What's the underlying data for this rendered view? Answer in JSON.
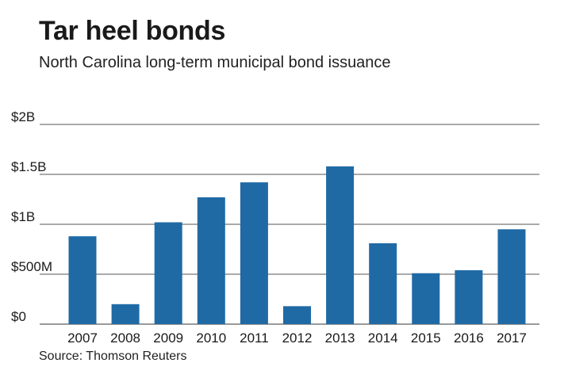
{
  "header": {
    "title": "Tar heel bonds",
    "subtitle": "North Carolina long-term municipal bond issuance"
  },
  "footer": {
    "source": "Source: Thomson Reuters"
  },
  "colors": {
    "bar": "#1f6aa5",
    "gridline": "#555555",
    "axis": "#333333"
  },
  "chart_data": {
    "type": "bar",
    "title": "Tar heel bonds",
    "subtitle": "North Carolina long-term municipal bond issuance",
    "xlabel": "",
    "ylabel": "",
    "units": "USD",
    "ylim": [
      0,
      2000000000
    ],
    "yticks": [
      {
        "value": 0,
        "label": "$0"
      },
      {
        "value": 500000000,
        "label": "$500M"
      },
      {
        "value": 1000000000,
        "label": "$1B"
      },
      {
        "value": 1500000000,
        "label": "$1.5B"
      },
      {
        "value": 2000000000,
        "label": "$2B"
      }
    ],
    "categories": [
      "2007",
      "2008",
      "2009",
      "2010",
      "2011",
      "2012",
      "2013",
      "2014",
      "2015",
      "2016",
      "2017"
    ],
    "values": [
      880000000,
      200000000,
      1020000000,
      1270000000,
      1420000000,
      180000000,
      1580000000,
      810000000,
      510000000,
      540000000,
      950000000
    ],
    "grid": true,
    "legend": "none"
  }
}
